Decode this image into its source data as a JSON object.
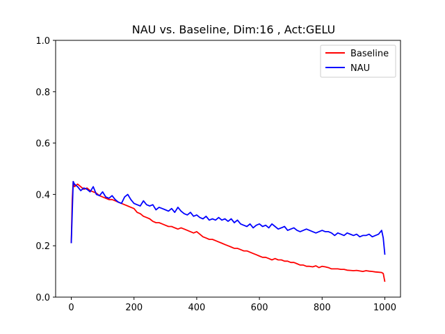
{
  "chart_data": {
    "type": "line",
    "title": "NAU vs. Baseline, Dim:16 , Act:GELU",
    "xlabel": "",
    "ylabel": "",
    "xlim": [
      -50,
      1050
    ],
    "ylim": [
      0.0,
      1.0
    ],
    "xticks": [
      0,
      200,
      400,
      600,
      800,
      1000
    ],
    "yticks": [
      0.0,
      0.2,
      0.4,
      0.6,
      0.8,
      1.0
    ],
    "xtick_labels": [
      "0",
      "200",
      "400",
      "600",
      "800",
      "1000"
    ],
    "ytick_labels": [
      "0.0",
      "0.2",
      "0.4",
      "0.6",
      "0.8",
      "1.0"
    ],
    "grid": false,
    "legend_position": "top-right",
    "series": [
      {
        "name": "Baseline",
        "color": "#ff0000",
        "x": [
          0,
          3,
          6,
          10,
          20,
          30,
          40,
          50,
          60,
          70,
          80,
          90,
          100,
          110,
          120,
          130,
          140,
          150,
          160,
          170,
          180,
          190,
          200,
          210,
          220,
          230,
          240,
          250,
          260,
          270,
          280,
          290,
          300,
          310,
          320,
          330,
          340,
          350,
          360,
          370,
          380,
          390,
          400,
          410,
          420,
          430,
          440,
          450,
          460,
          470,
          480,
          490,
          500,
          510,
          520,
          530,
          540,
          550,
          560,
          570,
          580,
          590,
          600,
          610,
          620,
          630,
          640,
          650,
          660,
          670,
          680,
          690,
          700,
          710,
          720,
          730,
          740,
          750,
          760,
          770,
          780,
          790,
          800,
          810,
          820,
          830,
          840,
          850,
          860,
          870,
          880,
          890,
          900,
          910,
          920,
          930,
          940,
          950,
          960,
          970,
          980,
          990,
          995,
          1000
        ],
        "y": [
          0.21,
          0.38,
          0.45,
          0.43,
          0.44,
          0.43,
          0.42,
          0.425,
          0.415,
          0.41,
          0.405,
          0.395,
          0.39,
          0.385,
          0.38,
          0.38,
          0.375,
          0.37,
          0.365,
          0.36,
          0.355,
          0.35,
          0.345,
          0.33,
          0.325,
          0.315,
          0.31,
          0.305,
          0.295,
          0.29,
          0.29,
          0.285,
          0.28,
          0.275,
          0.275,
          0.27,
          0.265,
          0.27,
          0.265,
          0.26,
          0.255,
          0.25,
          0.255,
          0.245,
          0.235,
          0.23,
          0.225,
          0.225,
          0.22,
          0.215,
          0.21,
          0.205,
          0.2,
          0.195,
          0.19,
          0.19,
          0.185,
          0.18,
          0.18,
          0.175,
          0.17,
          0.165,
          0.16,
          0.155,
          0.155,
          0.15,
          0.145,
          0.15,
          0.145,
          0.145,
          0.14,
          0.14,
          0.135,
          0.135,
          0.13,
          0.125,
          0.125,
          0.12,
          0.12,
          0.118,
          0.122,
          0.115,
          0.12,
          0.118,
          0.115,
          0.11,
          0.11,
          0.11,
          0.108,
          0.108,
          0.105,
          0.104,
          0.103,
          0.104,
          0.102,
          0.1,
          0.103,
          0.101,
          0.1,
          0.098,
          0.097,
          0.096,
          0.092,
          0.06
        ]
      },
      {
        "name": "NAU",
        "color": "#0000ff",
        "x": [
          0,
          3,
          6,
          10,
          20,
          30,
          40,
          50,
          60,
          70,
          80,
          90,
          100,
          110,
          120,
          130,
          140,
          150,
          160,
          170,
          180,
          190,
          200,
          210,
          220,
          230,
          240,
          250,
          260,
          270,
          280,
          290,
          300,
          310,
          320,
          330,
          340,
          350,
          360,
          370,
          380,
          390,
          400,
          410,
          420,
          430,
          440,
          450,
          460,
          470,
          480,
          490,
          500,
          510,
          520,
          530,
          540,
          550,
          560,
          570,
          580,
          590,
          600,
          610,
          620,
          630,
          640,
          650,
          660,
          670,
          680,
          690,
          700,
          710,
          720,
          730,
          740,
          750,
          760,
          770,
          780,
          790,
          800,
          810,
          820,
          830,
          840,
          850,
          860,
          870,
          880,
          890,
          900,
          910,
          920,
          930,
          940,
          950,
          960,
          970,
          980,
          990,
          995,
          1000
        ],
        "y": [
          0.21,
          0.33,
          0.45,
          0.44,
          0.43,
          0.415,
          0.425,
          0.42,
          0.41,
          0.43,
          0.4,
          0.395,
          0.41,
          0.39,
          0.385,
          0.395,
          0.38,
          0.37,
          0.365,
          0.39,
          0.4,
          0.38,
          0.365,
          0.36,
          0.355,
          0.375,
          0.36,
          0.355,
          0.36,
          0.34,
          0.35,
          0.345,
          0.34,
          0.335,
          0.345,
          0.33,
          0.35,
          0.335,
          0.325,
          0.32,
          0.33,
          0.315,
          0.32,
          0.31,
          0.305,
          0.315,
          0.3,
          0.305,
          0.3,
          0.31,
          0.3,
          0.305,
          0.295,
          0.305,
          0.29,
          0.3,
          0.285,
          0.28,
          0.275,
          0.285,
          0.27,
          0.28,
          0.285,
          0.275,
          0.28,
          0.27,
          0.285,
          0.275,
          0.265,
          0.27,
          0.275,
          0.26,
          0.265,
          0.27,
          0.26,
          0.255,
          0.26,
          0.265,
          0.26,
          0.255,
          0.25,
          0.255,
          0.26,
          0.255,
          0.255,
          0.25,
          0.24,
          0.25,
          0.245,
          0.24,
          0.25,
          0.245,
          0.24,
          0.245,
          0.235,
          0.24,
          0.24,
          0.245,
          0.235,
          0.24,
          0.245,
          0.26,
          0.23,
          0.165
        ]
      }
    ]
  }
}
